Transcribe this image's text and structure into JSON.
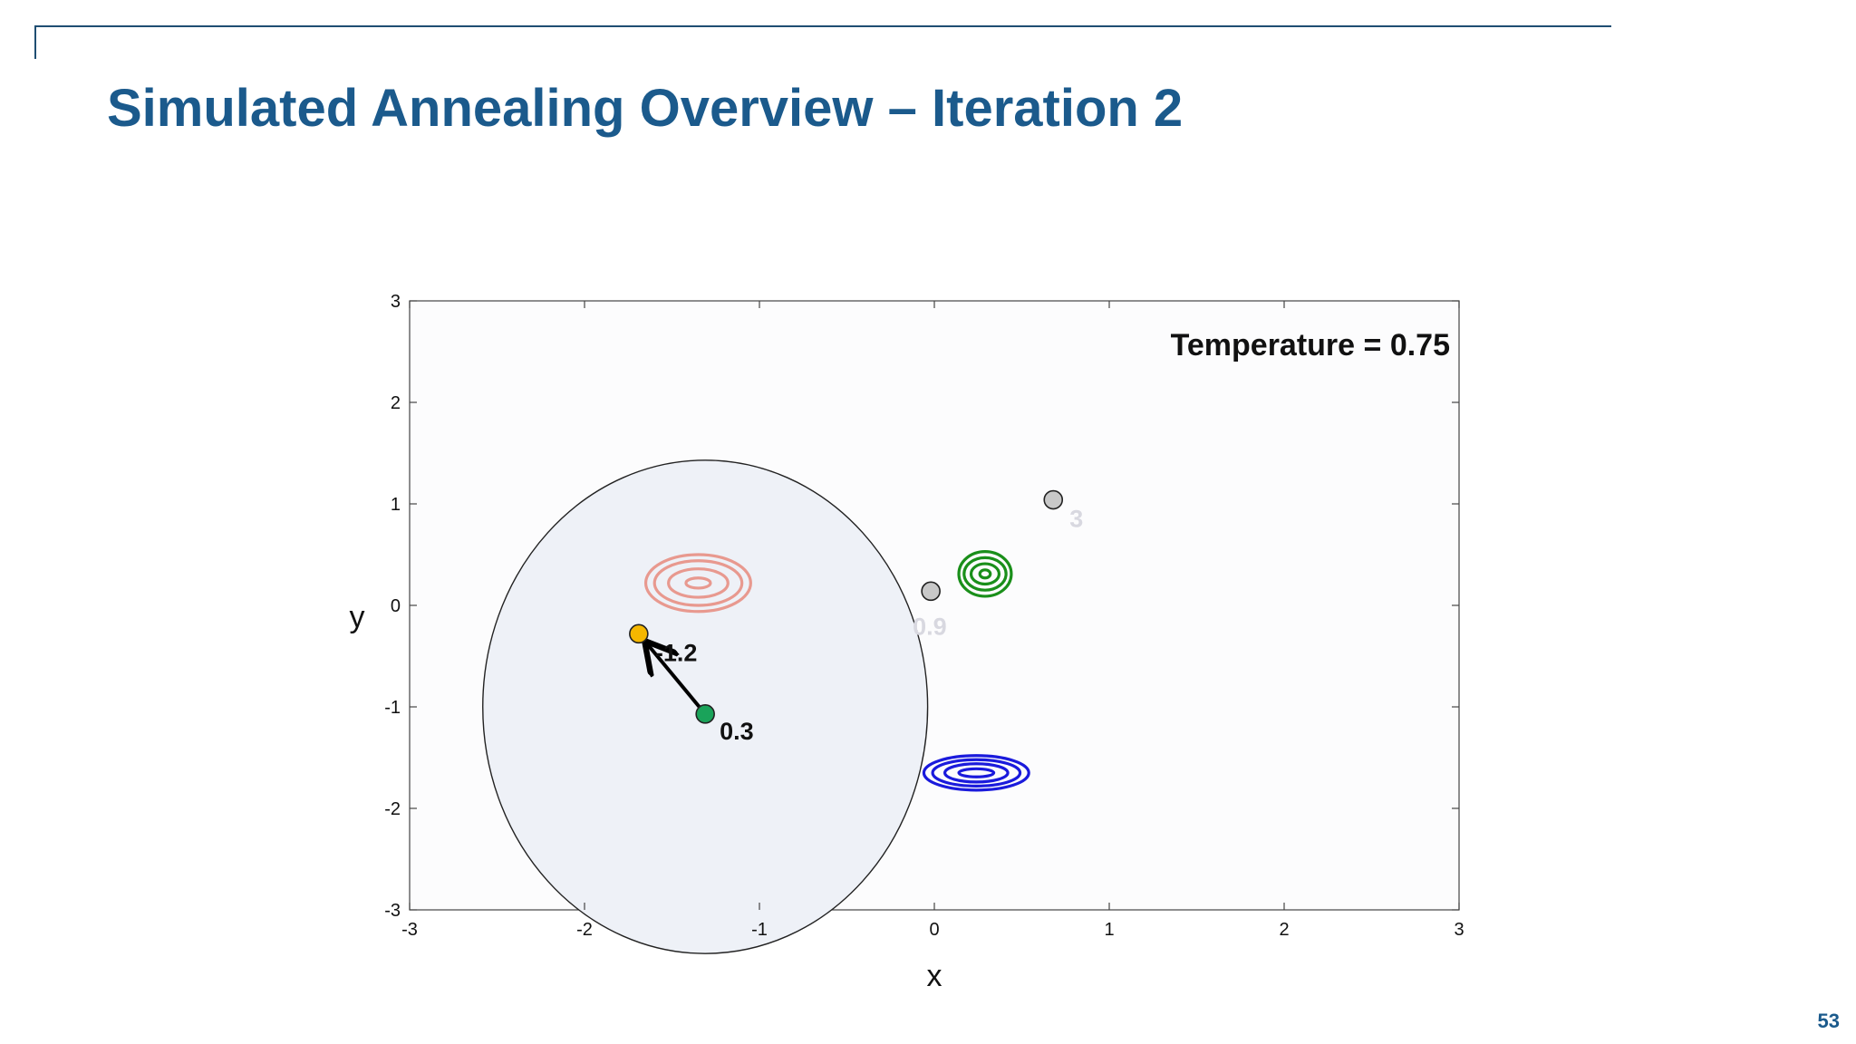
{
  "slide": {
    "title": "Simulated Annealing Overview – Iteration 2",
    "page_number": "53",
    "title_color": "#1b5a8c"
  },
  "chart_data": {
    "type": "scatter",
    "title": "",
    "xlabel": "x",
    "ylabel": "y",
    "xlim": [
      -3,
      3
    ],
    "ylim": [
      -3,
      3
    ],
    "x_ticks": [
      "-3",
      "-2",
      "-1",
      "0",
      "1",
      "2",
      "3"
    ],
    "y_ticks": [
      "3",
      "2",
      "1",
      "0",
      "-1",
      "-2",
      "-3"
    ],
    "grid": false,
    "annotation": "Temperature = 0.75",
    "neighborhood_circle": {
      "cx": -1.31,
      "cy": -1.0,
      "r": 1.35,
      "fill": "#eef1f7"
    },
    "move_arrow": {
      "from": [
        -1.31,
        -1.07
      ],
      "to": [
        -1.69,
        -0.28
      ]
    },
    "points": [
      {
        "x": -1.31,
        "y": -1.07,
        "label": "0.3",
        "color": "#1aa35a",
        "label_color": "#111111"
      },
      {
        "x": -1.69,
        "y": -0.28,
        "label": "-1.2",
        "color": "#f5b700",
        "label_color": "#111111"
      },
      {
        "x": -0.02,
        "y": 0.14,
        "label": "0.9",
        "color": "#c8c8c8",
        "label_color": "#d8d8e0"
      },
      {
        "x": 0.68,
        "y": 1.04,
        "label": "3",
        "color": "#c8c8c8",
        "label_color": "#d8d8e0"
      }
    ],
    "contours": [
      {
        "name": "",
        "cx": -1.35,
        "cy": 0.22,
        "rx": [
          0.07,
          0.17,
          0.25,
          0.3
        ],
        "ry": [
          0.05,
          0.14,
          0.22,
          0.28
        ],
        "color": "#e8998f"
      },
      {
        "name": "",
        "cx": 0.29,
        "cy": 0.31,
        "rx": [
          0.03,
          0.08,
          0.12,
          0.15
        ],
        "ry": [
          0.04,
          0.1,
          0.16,
          0.22
        ],
        "color": "#1a8f1a"
      },
      {
        "name": "",
        "cx": 0.24,
        "cy": -1.65,
        "rx": [
          0.1,
          0.18,
          0.25,
          0.3
        ],
        "ry": [
          0.04,
          0.09,
          0.13,
          0.17
        ],
        "color": "#1a1adc"
      }
    ]
  }
}
